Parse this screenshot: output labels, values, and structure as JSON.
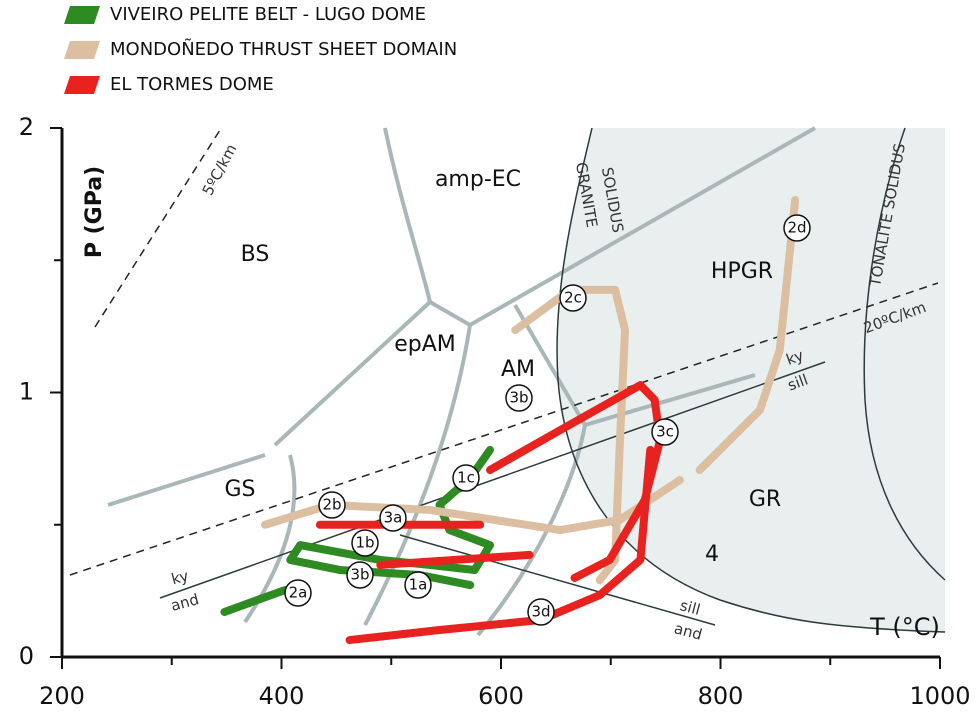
{
  "chart_data": {
    "type": "line",
    "xlabel": "T (°C)",
    "ylabel": "P (GPa)",
    "xlim": [
      200,
      1000
    ],
    "ylim": [
      0,
      2
    ],
    "xticks": [
      200,
      400,
      600,
      800,
      1000
    ],
    "yticks": [
      0,
      1,
      2
    ],
    "series": [
      {
        "name": "VIVEIRO PELITE BELT - LUGO DOME",
        "color": "#2e8b22",
        "x": [
          590,
          572,
          544,
          553,
          590,
          576,
          535,
          490,
          417,
          408,
          453,
          526,
          572,
          null,
          348,
          403
        ],
        "values": [
          0.783,
          0.677,
          0.575,
          0.48,
          0.423,
          0.329,
          0.348,
          0.367,
          0.423,
          0.367,
          0.329,
          0.31,
          0.272,
          null,
          0.17,
          0.253
        ]
      },
      {
        "name": "MONDOÑEDO THRUST SHEET DOMAIN",
        "color": "#dcbfa0",
        "x": [
          613,
          663,
          704,
          713,
          708,
          704,
          690,
          null,
          385,
          444,
          535,
          654,
          708,
          763,
          null,
          868,
          854,
          836,
          781
        ],
        "values": [
          1.236,
          1.388,
          1.388,
          1.236,
          0.783,
          0.367,
          0.291,
          null,
          0.5,
          0.575,
          0.556,
          0.48,
          0.518,
          0.669,
          null,
          1.728,
          1.161,
          0.934,
          0.707
        ]
      },
      {
        "name": "EL TORMES DOME",
        "color": "#e8231f",
        "x": [
          590,
          654,
          727,
          740,
          745,
          731,
          699,
          667,
          null,
          736,
          727,
          690,
          636,
          544,
          462,
          null,
          435,
          581,
          null,
          490,
          626
        ],
        "values": [
          0.707,
          0.858,
          1.028,
          0.972,
          0.82,
          0.594,
          0.367,
          0.299,
          null,
          0.783,
          0.367,
          0.234,
          0.14,
          0.102,
          0.064,
          null,
          0.5,
          0.5,
          null,
          0.348,
          0.386
        ]
      }
    ],
    "annotations": [
      "BS",
      "amp-EC",
      "epAM",
      "AM",
      "GS",
      "HPGR",
      "GR",
      "4",
      "5ºC/km",
      "20ºC/km",
      "GRANITE",
      "SOLIDUS",
      "TONALITE SOLIDUS",
      "ky",
      "sill",
      "ky",
      "and",
      "sill",
      "and",
      "2d",
      "2c",
      "1c",
      "2b",
      "3a",
      "1b",
      "3b",
      "1a",
      "2a",
      "3c",
      "3d",
      "3b"
    ]
  }
}
